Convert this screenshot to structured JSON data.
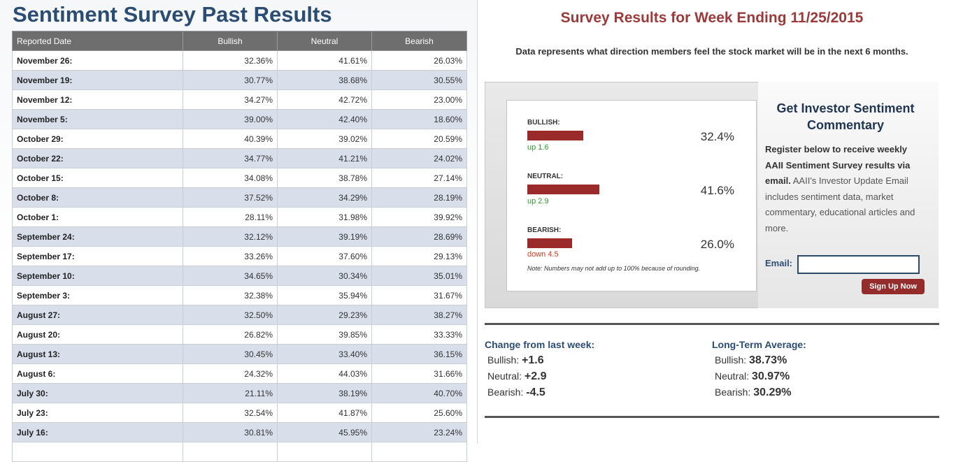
{
  "left": {
    "title": "Sentiment Survey Past Results",
    "headers": [
      "Reported Date",
      "Bullish",
      "Neutral",
      "Bearish"
    ],
    "rows": [
      [
        "November 26:",
        "32.36%",
        "41.61%",
        "26.03%"
      ],
      [
        "November 19:",
        "30.77%",
        "38.68%",
        "30.55%"
      ],
      [
        "November 12:",
        "34.27%",
        "42.72%",
        "23.00%"
      ],
      [
        "November 5:",
        "39.00%",
        "42.40%",
        "18.60%"
      ],
      [
        "October 29:",
        "40.39%",
        "39.02%",
        "20.59%"
      ],
      [
        "October 22:",
        "34.77%",
        "41.21%",
        "24.02%"
      ],
      [
        "October 15:",
        "34.08%",
        "38.78%",
        "27.14%"
      ],
      [
        "October 8:",
        "37.52%",
        "34.29%",
        "28.19%"
      ],
      [
        "October 1:",
        "28.11%",
        "31.98%",
        "39.92%"
      ],
      [
        "September 24:",
        "32.12%",
        "39.19%",
        "28.69%"
      ],
      [
        "September 17:",
        "33.26%",
        "37.60%",
        "29.13%"
      ],
      [
        "September 10:",
        "34.65%",
        "30.34%",
        "35.01%"
      ],
      [
        "September 3:",
        "32.38%",
        "35.94%",
        "31.67%"
      ],
      [
        "August 27:",
        "32.50%",
        "29.23%",
        "38.27%"
      ],
      [
        "August 20:",
        "26.82%",
        "39.85%",
        "33.33%"
      ],
      [
        "August 13:",
        "30.45%",
        "33.40%",
        "36.15%"
      ],
      [
        "August 6:",
        "24.32%",
        "44.03%",
        "31.66%"
      ],
      [
        "July 30:",
        "21.11%",
        "38.19%",
        "40.70%"
      ],
      [
        "July 23:",
        "32.54%",
        "41.87%",
        "25.60%"
      ],
      [
        "July 16:",
        "30.81%",
        "45.95%",
        "23.24%"
      ],
      [
        "",
        "",
        "",
        ""
      ]
    ]
  },
  "right": {
    "title": "Survey Results for Week Ending 11/25/2015",
    "subtitle": "Data represents what direction members feel the stock market will be in the next 6 months.",
    "sentiments": [
      {
        "label": "BULLISH:",
        "percent": "32.4%",
        "bar_fraction": 0.324,
        "change": "up 1.6",
        "direction": "up"
      },
      {
        "label": "NEUTRAL:",
        "percent": "41.6%",
        "bar_fraction": 0.416,
        "change": "up 2.9",
        "direction": "up"
      },
      {
        "label": "BEARISH:",
        "percent": "26.0%",
        "bar_fraction": 0.26,
        "change": "down 4.5",
        "direction": "down"
      }
    ],
    "note": "Note: Numbers may not add up to 100% because of rounding.",
    "signup": {
      "heading": "Get Investor Sentiment Commentary",
      "desc_bold": "Register below to receive weekly AAII Sentiment Survey results via email.",
      "desc_rest": " AAII's Investor Update Email includes sentiment data, market commentary, educational articles and more.",
      "email_label": "Email:",
      "email_value": "",
      "button": "Sign Up Now"
    },
    "change": {
      "heading": "Change from last week:",
      "items": [
        {
          "label": "Bullish: ",
          "value": "+1.6"
        },
        {
          "label": "Neutral: ",
          "value": "+2.9"
        },
        {
          "label": "Bearish: ",
          "value": "-4.5"
        }
      ]
    },
    "average": {
      "heading": "Long-Term Average:",
      "items": [
        {
          "label": "Bullish: ",
          "value": "38.73%"
        },
        {
          "label": "Neutral: ",
          "value": "30.97%"
        },
        {
          "label": "Bearish: ",
          "value": "30.29%"
        }
      ]
    },
    "colors": {
      "bar": "#9b2a2a",
      "up": "#2e9a2e",
      "down": "#d03a1a",
      "title": "#9b3a3a",
      "navy": "#2b4d74"
    }
  }
}
